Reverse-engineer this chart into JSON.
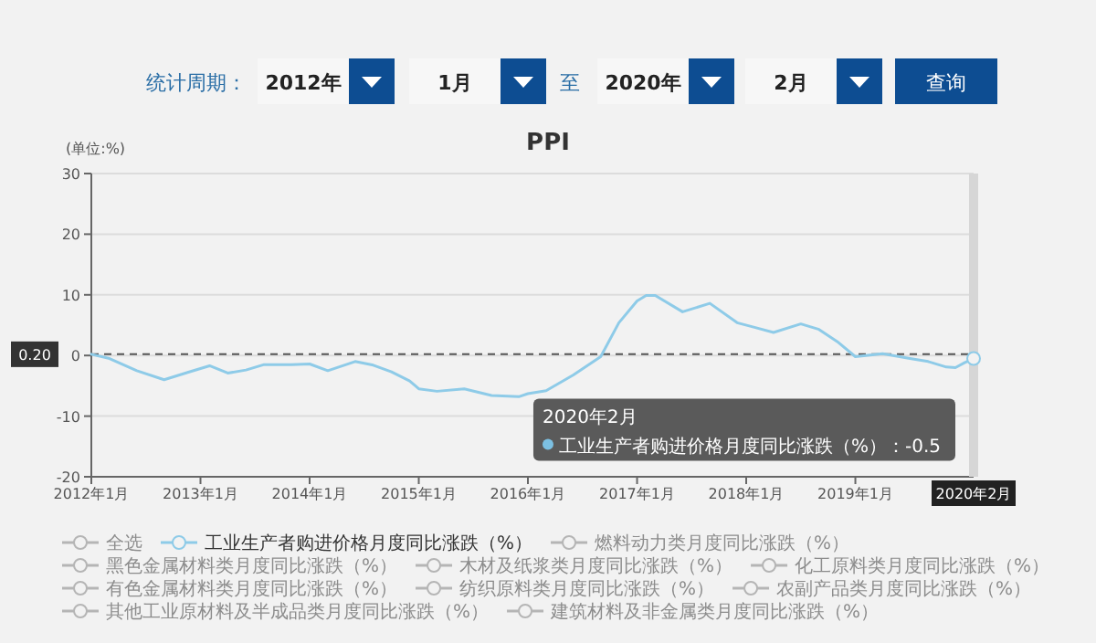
{
  "chart_data": {
    "type": "line",
    "title": "PPI",
    "ylabel": "(单位:%)",
    "x": [
      "2012-01",
      "2012-03",
      "2012-06",
      "2012-09",
      "2012-12",
      "2013-02",
      "2013-04",
      "2013-06",
      "2013-08",
      "2013-11",
      "2014-01",
      "2014-03",
      "2014-06",
      "2014-08",
      "2014-10",
      "2014-12",
      "2015-01",
      "2015-03",
      "2015-06",
      "2015-09",
      "2015-12",
      "2016-01",
      "2016-03",
      "2016-06",
      "2016-09",
      "2016-11",
      "2017-01",
      "2017-02",
      "2017-03",
      "2017-06",
      "2017-09",
      "2017-12",
      "2018-02",
      "2018-04",
      "2018-07",
      "2018-09",
      "2018-11",
      "2019-01",
      "2019-04",
      "2019-07",
      "2019-09",
      "2019-11",
      "2019-12",
      "2020-01",
      "2020-02"
    ],
    "series": [
      {
        "name": "工业生产者购进价格月度同比涨跌（%）",
        "color": "#8ecbe8",
        "values": [
          0.2,
          -0.5,
          -2.5,
          -4.0,
          -2.6,
          -1.7,
          -2.9,
          -2.4,
          -1.5,
          -1.5,
          -1.4,
          -2.5,
          -1.0,
          -1.6,
          -2.7,
          -4.2,
          -5.5,
          -5.9,
          -5.5,
          -6.6,
          -6.8,
          -6.3,
          -5.8,
          -3.2,
          -0.2,
          5.4,
          9.0,
          9.9,
          9.9,
          7.2,
          8.6,
          5.4,
          4.6,
          3.8,
          5.2,
          4.3,
          2.3,
          -0.2,
          0.3,
          -0.5,
          -1.0,
          -1.9,
          -2.0,
          -1.2,
          -0.5
        ]
      }
    ],
    "xlim": [
      "2012-01",
      "2020-02"
    ],
    "xticks": [
      {
        "value": "2012-01",
        "label": "2012年1月"
      },
      {
        "value": "2013-01",
        "label": "2013年1月"
      },
      {
        "value": "2014-01",
        "label": "2014年1月"
      },
      {
        "value": "2015-01",
        "label": "2015年1月"
      },
      {
        "value": "2016-01",
        "label": "2016年1月"
      },
      {
        "value": "2017-01",
        "label": "2017年1月"
      },
      {
        "value": "2018-01",
        "label": "2018年1月"
      },
      {
        "value": "2019-01",
        "label": "2019年1月"
      }
    ],
    "ylim": [
      -20,
      30
    ],
    "yticks": [
      -20,
      -10,
      0,
      10,
      20,
      30
    ],
    "grid": "y",
    "legend": "bottom",
    "ref_lines": [
      {
        "axis": "y",
        "value": 0.2,
        "label": "0.20",
        "line_style": "dashed",
        "color": "#555555"
      },
      {
        "axis": "x",
        "value": "2020-02",
        "label": "2020年2月",
        "color": "#d6d6d6"
      }
    ],
    "annotations": [
      "统计周期：",
      "2012年",
      "1月",
      "至",
      "2020年",
      "2月",
      "查询",
      "全选",
      "燃料动力类月度同比涨跌（%）",
      "黑色金属材料类月度同比涨跌（%）",
      "木材及纸浆类月度同比涨跌（%）",
      "化工原料类月度同比涨跌（%）",
      "有色金属材料类月度同比涨跌（%）",
      "纺织原料类月度同比涨跌（%）",
      "农副产品类月度同比涨跌（%）",
      "其他工业原材料及半成品类月度同比涨跌（%）",
      "建筑材料及非金属类月度同比涨跌（%）",
      "2020年2月",
      "工业生产者购进价格月度同比涨跌（%）：-0.5"
    ]
  }
}
